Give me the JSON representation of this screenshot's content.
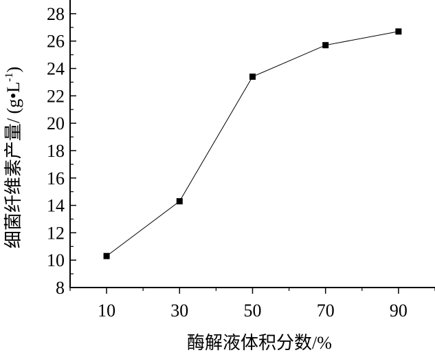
{
  "chart_data": {
    "type": "line",
    "xlabel": "酶解液体积分数/%",
    "ylabel": "细菌纤维素产量/ (g•L",
    "ylabel_sup": "-1",
    "ylabel_close": ")",
    "x": [
      10,
      30,
      50,
      70,
      90
    ],
    "series": [
      {
        "values": [
          10.3,
          14.3,
          23.4,
          25.7,
          26.7
        ]
      }
    ],
    "xlim": [
      0,
      100
    ],
    "ylim": [
      8,
      29
    ],
    "x_ticks": [
      10,
      30,
      50,
      70,
      90
    ],
    "y_ticks": [
      8,
      10,
      12,
      14,
      16,
      18,
      20,
      22,
      24,
      26,
      28
    ],
    "grid": false,
    "marker": "square",
    "colors": {
      "line": "#000000",
      "marker": "#000000",
      "axis": "#000000"
    }
  }
}
